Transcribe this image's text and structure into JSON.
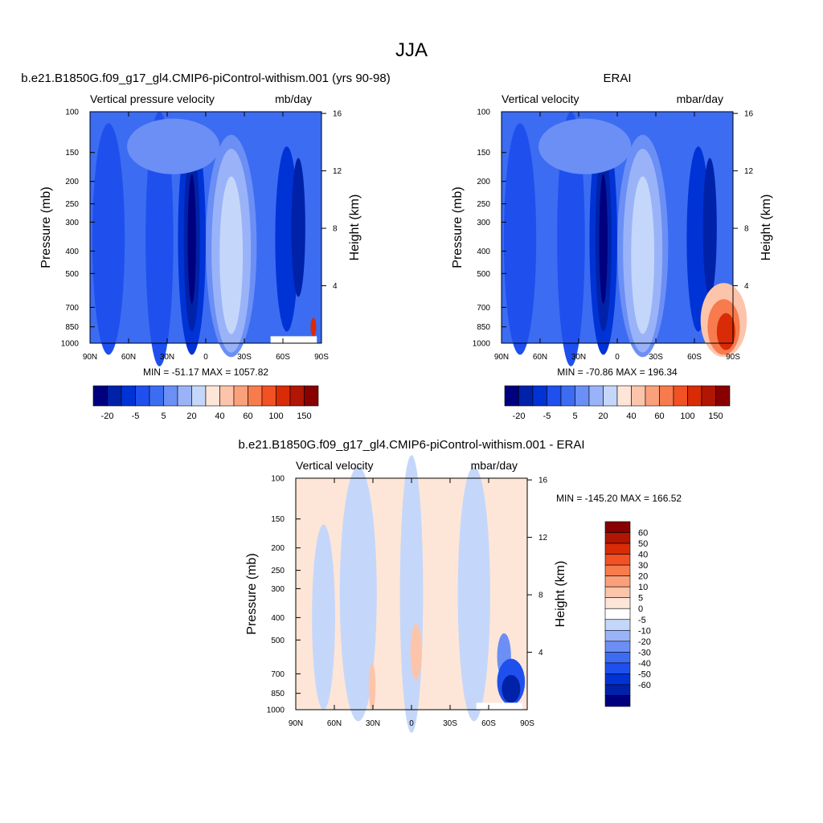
{
  "figure": {
    "title": "JJA"
  },
  "chart_data": [
    {
      "type": "heatmap",
      "title": "b.e21.B1850G.f09_g17_gl4.CMIP6-piControl-withism.001 (yrs 90-98)",
      "subtitle_left": "Vertical pressure velocity",
      "subtitle_right": "mb/day",
      "ylabel": "Pressure (mb)",
      "ylabel_right": "Height (km)",
      "x_ticks": [
        "90N",
        "60N",
        "30N",
        "0",
        "30S",
        "60S",
        "90S"
      ],
      "y_ticks": [
        "100",
        "150",
        "200",
        "250",
        "300",
        "400",
        "500",
        "700",
        "850",
        "1000"
      ],
      "y_right_ticks": [
        "4",
        "8",
        "12",
        "16"
      ],
      "stats": "MIN = -51.17  MAX = 1057.82",
      "colorbar": {
        "orientation": "horizontal",
        "labels": [
          "-20",
          "-5",
          "5",
          "20",
          "40",
          "60",
          "100",
          "150"
        ],
        "colors": [
          "#00007f",
          "#0022a8",
          "#0033d6",
          "#1f50ee",
          "#3c6cf2",
          "#6b8ff5",
          "#9ab3f8",
          "#c4d7fa",
          "#fde6d8",
          "#fcc5ab",
          "#faa07a",
          "#f77b4d",
          "#f15123",
          "#d92b05",
          "#b01603",
          "#880000"
        ]
      }
    },
    {
      "type": "heatmap",
      "title": "ERAI",
      "subtitle_left": "Vertical velocity",
      "subtitle_right": "mbar/day",
      "ylabel": "Pressure (mb)",
      "ylabel_right": "Height (km)",
      "x_ticks": [
        "90N",
        "60N",
        "30N",
        "0",
        "30S",
        "60S",
        "90S"
      ],
      "y_ticks": [
        "100",
        "150",
        "200",
        "250",
        "300",
        "400",
        "500",
        "700",
        "850",
        "1000"
      ],
      "y_right_ticks": [
        "4",
        "8",
        "12",
        "16"
      ],
      "stats": "MIN = -70.86  MAX = 196.34",
      "colorbar": {
        "orientation": "horizontal",
        "labels": [
          "-20",
          "-5",
          "5",
          "20",
          "40",
          "60",
          "100",
          "150"
        ],
        "colors": [
          "#00007f",
          "#0022a8",
          "#0033d6",
          "#1f50ee",
          "#3c6cf2",
          "#6b8ff5",
          "#9ab3f8",
          "#c4d7fa",
          "#fde6d8",
          "#fcc5ab",
          "#faa07a",
          "#f77b4d",
          "#f15123",
          "#d92b05",
          "#b01603",
          "#880000"
        ]
      }
    },
    {
      "type": "heatmap",
      "title": "b.e21.B1850G.f09_g17_gl4.CMIP6-piControl-withism.001 - ERAI",
      "subtitle_left": "Vertical velocity",
      "subtitle_right": "mbar/day",
      "ylabel": "Pressure (mb)",
      "ylabel_right": "Height (km)",
      "x_ticks": [
        "90N",
        "60N",
        "30N",
        "0",
        "30S",
        "60S",
        "90S"
      ],
      "y_ticks": [
        "100",
        "150",
        "200",
        "250",
        "300",
        "400",
        "500",
        "700",
        "850",
        "1000"
      ],
      "y_right_ticks": [
        "4",
        "8",
        "12",
        "16"
      ],
      "stats": "MIN = -145.20  MAX = 166.52",
      "colorbar": {
        "orientation": "vertical",
        "labels": [
          "60",
          "50",
          "40",
          "30",
          "20",
          "10",
          "5",
          "0",
          "-5",
          "-10",
          "-20",
          "-30",
          "-40",
          "-50",
          "-60"
        ],
        "colors": [
          "#880000",
          "#b01603",
          "#d92b05",
          "#f15123",
          "#f77b4d",
          "#faa07a",
          "#fcc5ab",
          "#fde6d8",
          "#ffffff",
          "#c4d7fa",
          "#9ab3f8",
          "#6b8ff5",
          "#3c6cf2",
          "#1f50ee",
          "#0033d6",
          "#0022a8",
          "#00007f"
        ]
      }
    }
  ]
}
